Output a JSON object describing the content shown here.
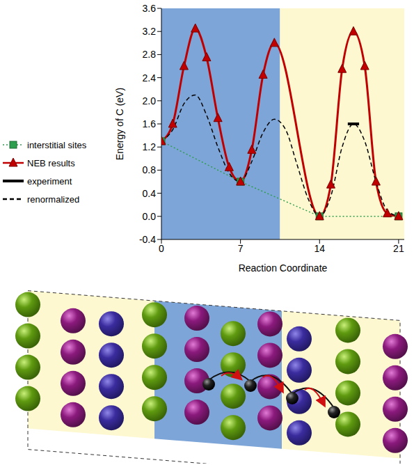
{
  "chart_data": {
    "type": "line",
    "xlabel": "Reaction Coordinate",
    "ylabel": "Energy of C (eV)",
    "xlim": [
      0,
      21.5
    ],
    "xticks": [
      0,
      7,
      14,
      21
    ],
    "ylim": [
      -0.4,
      3.6
    ],
    "yticks": [
      -0.4,
      {
        "value": 0,
        "label": "0.0"
      },
      0.4,
      0.8,
      1.2,
      1.6,
      {
        "value": 2,
        "label": "2.0"
      },
      2.4,
      2.8,
      3.2,
      3.6
    ],
    "grid": false,
    "legend": "left",
    "regions": [
      {
        "x": [
          0,
          10.5
        ],
        "color": "#7da5d8"
      },
      {
        "x": [
          10.5,
          21.5
        ],
        "color": "#fdf8cf"
      }
    ],
    "series": [
      {
        "name": "interstitial sites",
        "color": "#2e9e4f",
        "marker": "square",
        "line_style": "dotted",
        "x": [
          0,
          7,
          14,
          21
        ],
        "values": [
          1.3,
          0.6,
          0,
          0
        ]
      },
      {
        "name": "NEB results",
        "color": "#c00000",
        "marker": "triangle",
        "line_style": "solid",
        "x": [
          0,
          1,
          2,
          3,
          4,
          5,
          6,
          7,
          8,
          9,
          10,
          14,
          15,
          16,
          17,
          18,
          19,
          20,
          21
        ],
        "values": [
          1.3,
          1.6,
          2.6,
          3.25,
          2.75,
          1.7,
          0.85,
          0.6,
          1.15,
          2.45,
          3.0,
          0,
          0.55,
          2.55,
          3.2,
          2.6,
          0.6,
          0.05,
          0
        ]
      },
      {
        "name": "experiment",
        "color": "#000000",
        "marker": "none",
        "line_style": "solid",
        "x": [
          16.5,
          17.5
        ],
        "values": [
          1.6,
          1.6
        ]
      },
      {
        "name": "renormalized",
        "color": "#000000",
        "marker": "none",
        "line_style": "dashed",
        "x": [
          0,
          1,
          2,
          3,
          4,
          5,
          6,
          7,
          8,
          9,
          10,
          11,
          12,
          13,
          14,
          15,
          16,
          17,
          18,
          19,
          20,
          21
        ],
        "values": [
          1.3,
          1.5,
          1.95,
          2.1,
          1.75,
          1.2,
          0.75,
          0.6,
          0.95,
          1.45,
          1.68,
          1.5,
          0.9,
          0.3,
          0,
          0.35,
          1.2,
          1.6,
          1.3,
          0.6,
          0.1,
          0
        ]
      }
    ]
  }
}
